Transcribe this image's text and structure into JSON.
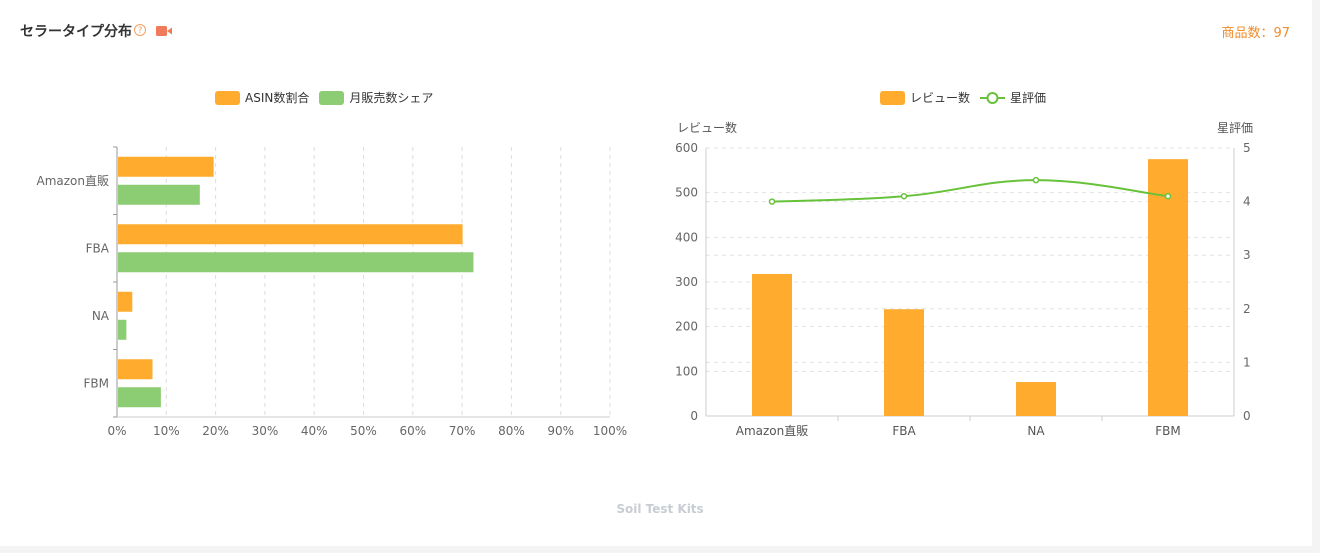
{
  "header": {
    "title": "セラータイプ分布",
    "help_glyph": "?",
    "count_label": "商品数：97"
  },
  "colors": {
    "orange": "#ffab2e",
    "green": "#8ccc72",
    "line": "#67c23a",
    "accent": "#f08c2a",
    "video_icon": "#f07a5a"
  },
  "icons": {
    "help": "question-circle-icon",
    "video": "video-camera-icon"
  },
  "footer_text": "Soil Test Kits",
  "chart_data": [
    {
      "type": "bar",
      "orientation": "horizontal",
      "categories": [
        "Amazon直販",
        "FBA",
        "NA",
        "FBM"
      ],
      "series": [
        {
          "name": "ASIN数割合",
          "values": [
            19.6,
            70.1,
            3.1,
            7.2
          ]
        },
        {
          "name": "月販売数シェア",
          "values": [
            16.8,
            72.3,
            1.9,
            8.9
          ]
        }
      ],
      "xlim": [
        0,
        100
      ],
      "xticks": [
        "0%",
        "10%",
        "20%",
        "30%",
        "40%",
        "50%",
        "60%",
        "70%",
        "80%",
        "90%",
        "100%"
      ],
      "legend_position": "top-center",
      "grid": true
    },
    {
      "type": "bar+line",
      "categories": [
        "Amazon直販",
        "FBA",
        "NA",
        "FBM"
      ],
      "series": [
        {
          "name": "レビュー数",
          "type": "bar",
          "axis": "left",
          "values": [
            318,
            239,
            76,
            575
          ]
        },
        {
          "name": "星評価",
          "type": "line",
          "axis": "right",
          "values": [
            4.0,
            4.1,
            4.4,
            4.1
          ]
        }
      ],
      "ylabel_left": "レビュー数",
      "ylabel_right": "星評価",
      "ylim_left": [
        0,
        600
      ],
      "ylim_right": [
        0,
        5
      ],
      "yticks_left": [
        0,
        100,
        200,
        300,
        400,
        500,
        600
      ],
      "yticks_right": [
        0,
        1,
        2,
        3,
        4,
        5
      ],
      "legend_position": "top-center",
      "grid": true
    }
  ]
}
